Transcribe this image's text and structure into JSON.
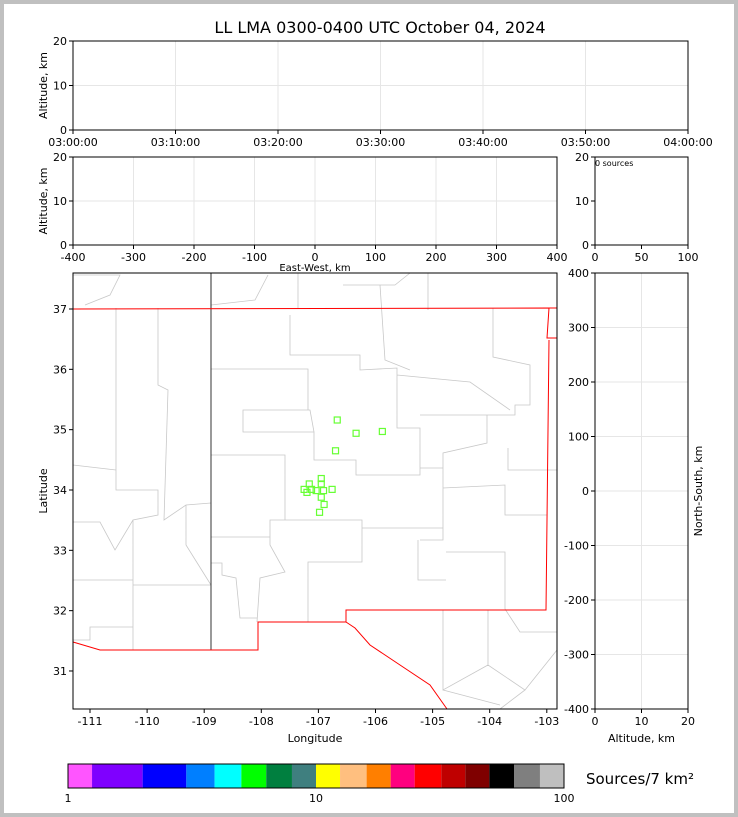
{
  "chart_data": [
    {
      "id": "time-height",
      "type": "scatter",
      "title": "LL LMA 0300-0400 UTC October 04, 2024",
      "ylabel": "Altitude, km",
      "ylim": [
        0,
        20
      ],
      "yticks": [
        0,
        10,
        20
      ],
      "xticks": [
        "03:00:00",
        "03:10:00",
        "03:20:00",
        "03:30:00",
        "03:40:00",
        "03:50:00",
        "04:00:00"
      ],
      "points": []
    },
    {
      "id": "ew-alt",
      "type": "scatter",
      "xlabel": "East-West, km",
      "ylabel": "Altitude, km",
      "xlim": [
        -400,
        400
      ],
      "ylim": [
        0,
        20
      ],
      "xticks": [
        -400,
        -300,
        -200,
        -100,
        0,
        100,
        200,
        300,
        400
      ],
      "yticks": [
        0,
        10,
        20
      ],
      "points": []
    },
    {
      "id": "histogram",
      "type": "bar",
      "xlim": [
        0,
        100
      ],
      "ylim": [
        0,
        20
      ],
      "xticks": [
        0,
        50,
        100
      ],
      "yticks": [
        0,
        10,
        20
      ],
      "annotation": "0 sources",
      "values": []
    },
    {
      "id": "plan-view",
      "type": "scatter",
      "xlabel": "Longitude",
      "ylabel": "Latitude",
      "xlim": [
        -111.5,
        -102.95
      ],
      "ylim": [
        30.4,
        37.6
      ],
      "xticks": [
        -111,
        -110,
        -109,
        -108,
        -107,
        -106,
        -105,
        -104,
        -103
      ],
      "yticks": [
        31,
        32,
        33,
        34,
        35,
        36,
        37
      ],
      "marker_color": "#66ff33",
      "points": [
        [
          -106.67,
          35.16
        ],
        [
          -106.34,
          34.94
        ],
        [
          -105.88,
          34.97
        ],
        [
          -106.7,
          34.65
        ],
        [
          -106.95,
          34.19
        ],
        [
          -107.16,
          34.1
        ],
        [
          -106.95,
          34.1
        ],
        [
          -107.25,
          34.01
        ],
        [
          -107.12,
          34.01
        ],
        [
          -107.04,
          33.99
        ],
        [
          -106.91,
          33.99
        ],
        [
          -106.76,
          34.01
        ],
        [
          -107.2,
          33.96
        ],
        [
          -106.95,
          33.88
        ],
        [
          -106.9,
          33.76
        ],
        [
          -106.98,
          33.63
        ]
      ]
    },
    {
      "id": "alt-ns",
      "type": "scatter",
      "xlabel": "Altitude, km",
      "ylabel": "North-South, km",
      "xlim": [
        0,
        20
      ],
      "ylim": [
        -400,
        400
      ],
      "xticks": [
        0,
        10,
        20
      ],
      "yticks": [
        400,
        300,
        200,
        100,
        0,
        -100,
        -200,
        -300,
        -400
      ],
      "points": []
    },
    {
      "id": "colorbar",
      "type": "colorbar",
      "label": "Sources/7 km²",
      "scale": "log",
      "range": [
        1,
        100
      ],
      "tick_labels": [
        "1",
        "10",
        "100"
      ],
      "colors": [
        "#ff55ff",
        "#7f00ff",
        "#0000ff",
        "#007fff",
        "#00ffff",
        "#00ff00",
        "#007f3f",
        "#3f7f7f",
        "#ffff00",
        "#ffbf7f",
        "#ff7f00",
        "#ff007f",
        "#ff0000",
        "#bf0000",
        "#7f0000",
        "#000000",
        "#7f7f7f",
        "#bfbfbf",
        "#ffffff"
      ]
    }
  ]
}
